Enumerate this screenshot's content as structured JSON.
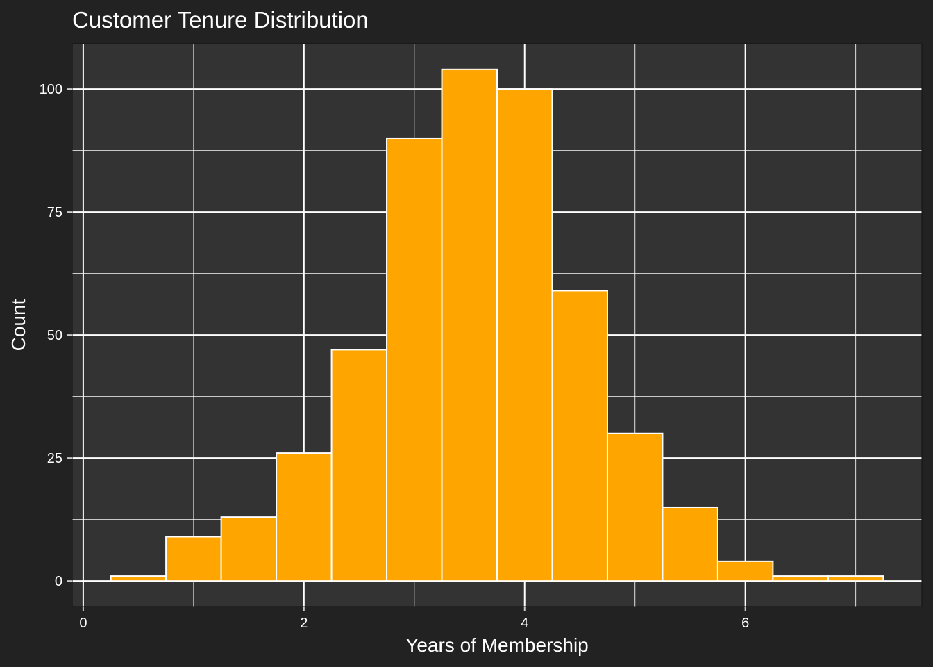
{
  "chart_data": {
    "type": "bar",
    "title": "Customer Tenure Distribution",
    "xlabel": "Years of Membership",
    "ylabel": "Count",
    "bin_width": 0.5,
    "bins": [
      {
        "start": 0.25,
        "end": 0.75,
        "count": 1
      },
      {
        "start": 0.75,
        "end": 1.25,
        "count": 9
      },
      {
        "start": 1.25,
        "end": 1.75,
        "count": 13
      },
      {
        "start": 1.75,
        "end": 2.25,
        "count": 26
      },
      {
        "start": 2.25,
        "end": 2.75,
        "count": 47
      },
      {
        "start": 2.75,
        "end": 3.25,
        "count": 90
      },
      {
        "start": 3.25,
        "end": 3.75,
        "count": 104
      },
      {
        "start": 3.75,
        "end": 4.25,
        "count": 100
      },
      {
        "start": 4.25,
        "end": 4.75,
        "count": 59
      },
      {
        "start": 4.75,
        "end": 5.25,
        "count": 30
      },
      {
        "start": 5.25,
        "end": 5.75,
        "count": 15
      },
      {
        "start": 5.75,
        "end": 6.25,
        "count": 4
      },
      {
        "start": 6.25,
        "end": 6.75,
        "count": 1
      },
      {
        "start": 6.75,
        "end": 7.25,
        "count": 1
      }
    ],
    "xlim": [
      -0.1,
      7.6
    ],
    "ylim": [
      -5.2,
      109.2
    ],
    "x_ticks": [
      0,
      2,
      4,
      6
    ],
    "x_tick_labels": [
      "0",
      "2",
      "4",
      "6"
    ],
    "x_minor_gridlines": [
      1,
      3,
      5,
      7
    ],
    "y_ticks": [
      0,
      25,
      50,
      75,
      100
    ],
    "y_tick_labels": [
      "0",
      "25",
      "50",
      "75",
      "100"
    ],
    "y_minor_gridlines": [
      12.5,
      37.5,
      62.5,
      87.5
    ],
    "grid": true,
    "legend": "none",
    "colors": {
      "bar_fill": "#FFA500",
      "bar_outline": "#ffffff",
      "panel_background": "#333333",
      "plot_background": "#222222",
      "gridlines": "#ffffff",
      "text": "#ffffff"
    }
  }
}
